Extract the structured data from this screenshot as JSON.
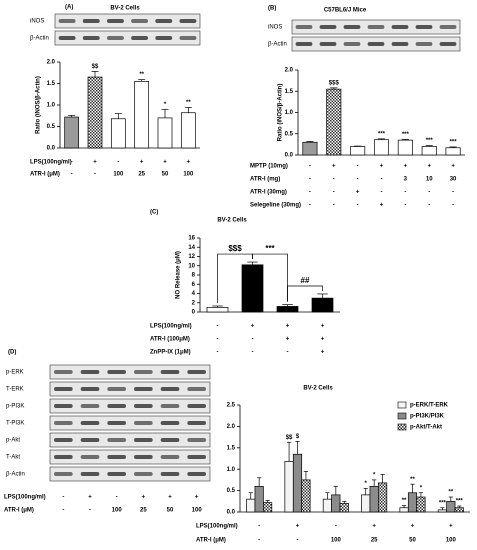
{
  "chart_data": [
    {
      "type": "bar",
      "panel": "(A)",
      "title": "BV-2 Cells",
      "blot_labels": [
        "iNOS",
        "β-Actin"
      ],
      "y_label": "Ratio (iNOS/β-Actin)",
      "ylim": [
        0,
        2
      ],
      "yticks": [
        {
          "value": 0,
          "label": "0.0"
        },
        0.5,
        {
          "value": 1,
          "label": "1.0"
        },
        1.5,
        {
          "value": 2,
          "label": "2.0"
        }
      ],
      "values": [
        0.72,
        1.65,
        0.68,
        1.55,
        0.7,
        0.82
      ],
      "errors": [
        0.04,
        0.13,
        0.12,
        0.04,
        0.2,
        0.12
      ],
      "colors": [
        "#9a9a9a",
        "#505050",
        "#ffffff",
        "#ffffff",
        "#ffffff",
        "#ffffff"
      ],
      "annotations": [
        null,
        "$$",
        null,
        "**",
        "*",
        "**"
      ],
      "rows": [
        {
          "label": "LPS(100ng/ml)",
          "values": [
            "-",
            "+",
            "-",
            "+",
            "+",
            "+"
          ]
        },
        {
          "label": "ATR-I (μM)",
          "values": [
            "-",
            "-",
            "100",
            "25",
            "50",
            "100"
          ]
        }
      ]
    },
    {
      "type": "bar",
      "panel": "(B)",
      "title": "C57BL6/J Mice",
      "blot_labels": [
        "iNOS",
        "β-Actin"
      ],
      "y_label": "Ratio (iNOS/β-Actin)",
      "ylim": [
        0,
        2
      ],
      "yticks": [
        {
          "value": 0,
          "label": "0.0"
        },
        0.5,
        {
          "value": 1,
          "label": "1.0"
        },
        1.5,
        {
          "value": 2,
          "label": "2.0"
        }
      ],
      "values": [
        0.3,
        1.55,
        0.2,
        0.36,
        0.35,
        0.2,
        0.17
      ],
      "errors": [
        0.02,
        0.03,
        0.01,
        0.02,
        0.02,
        0.02,
        0.02
      ],
      "colors": [
        "#9a9a9a",
        "#505050",
        "#ffffff",
        "#ffffff",
        "#ffffff",
        "#ffffff",
        "#ffffff"
      ],
      "annotations": [
        null,
        "$$$",
        null,
        "***",
        "***",
        "***",
        "***"
      ],
      "rows": [
        {
          "label": "MPTP (10mg)",
          "values": [
            "-",
            "+",
            "-",
            "+",
            "+",
            "+",
            "+"
          ]
        },
        {
          "label": "ATR-I (mg)",
          "values": [
            "-",
            "-",
            "-",
            "-",
            "3",
            "10",
            "30"
          ]
        },
        {
          "label": "ATR-I (30mg)",
          "values": [
            "-",
            "-",
            "+",
            "-",
            "-",
            "-",
            "-"
          ]
        },
        {
          "label": "Selegeline (30mg)",
          "values": [
            "-",
            "-",
            "-",
            "+",
            "-",
            "-",
            "-"
          ]
        }
      ]
    },
    {
      "type": "bar",
      "panel": "(C)",
      "title": "BV-2 Cells",
      "y_label": "NO Release (μM)",
      "ylim": [
        0,
        16
      ],
      "yticks": [
        0,
        2,
        4,
        6,
        8,
        10,
        12,
        14,
        16
      ],
      "values": [
        1.0,
        10.2,
        1.2,
        3.0
      ],
      "errors": [
        0.3,
        0.6,
        0.4,
        0.9
      ],
      "colors": [
        "#ffffff",
        "#000000",
        "#000000",
        "#000000"
      ],
      "brackets": [
        "$$$",
        "***",
        "##"
      ],
      "rows": [
        {
          "label": "LPS(100ng/ml)",
          "values": [
            "-",
            "+",
            "+",
            "+"
          ]
        },
        {
          "label": "ATR-I (100μM)",
          "values": [
            "-",
            "-",
            "+",
            "+"
          ]
        },
        {
          "label": "ZnPP-IX (1μM)",
          "values": [
            "-",
            "-",
            "-",
            "+"
          ]
        }
      ]
    },
    {
      "type": "grouped-bar",
      "panel": "(D)",
      "title": "BV-2 Cells",
      "blot_labels": [
        "p-ERK",
        "T-ERK",
        "p-PI3K",
        "T-PI3K",
        "p-Akt",
        "T-Akt",
        "β-Actin"
      ],
      "blot_rows": [
        {
          "label": "LPS(100ng/ml)",
          "values": [
            "-",
            "+",
            "-",
            "+",
            "+",
            "+"
          ]
        },
        {
          "label": "ATR-I (μM)",
          "values": [
            "-",
            "-",
            "100",
            "25",
            "50",
            "100"
          ]
        }
      ],
      "ylim": [
        0,
        2.5
      ],
      "yticks": [
        {
          "value": 0,
          "label": "0.0"
        },
        0.5,
        {
          "value": 1,
          "label": "1.0"
        },
        1.5,
        {
          "value": 2,
          "label": "2.0"
        },
        2.5
      ],
      "legend": "top-right",
      "series": [
        {
          "name": "p-ERK/T-ERK",
          "color": "#f4f4f4",
          "values": [
            0.3,
            1.18,
            0.3,
            0.4,
            0.1,
            0.05
          ],
          "errors": [
            0.15,
            0.45,
            0.15,
            0.15,
            0.05,
            0.05
          ],
          "annotations": [
            null,
            "$$",
            null,
            "*",
            "**",
            "***"
          ]
        },
        {
          "name": "p-PI3K/PI3K",
          "color": "#8c8c8c",
          "values": [
            0.6,
            1.35,
            0.4,
            0.6,
            0.45,
            0.25
          ],
          "errors": [
            0.2,
            0.3,
            0.2,
            0.15,
            0.2,
            0.1
          ],
          "annotations": [
            null,
            "$",
            null,
            "*",
            "**",
            "**"
          ]
        },
        {
          "name": "p-Akt/T-Akt",
          "color": "#c8c8c8",
          "values": [
            0.22,
            0.75,
            0.2,
            0.68,
            0.35,
            0.1
          ],
          "errors": [
            0.05,
            0.2,
            0.05,
            0.2,
            0.1,
            0.04
          ],
          "annotations": [
            null,
            null,
            null,
            null,
            "*",
            "***"
          ]
        }
      ],
      "rows": [
        {
          "label": "LPS(100ng/ml)",
          "values": [
            "-",
            "+",
            "-",
            "+",
            "+",
            "+"
          ]
        },
        {
          "label": "ATR-I (μM)",
          "values": [
            "-",
            "-",
            "100",
            "25",
            "50",
            "100"
          ]
        }
      ]
    }
  ]
}
